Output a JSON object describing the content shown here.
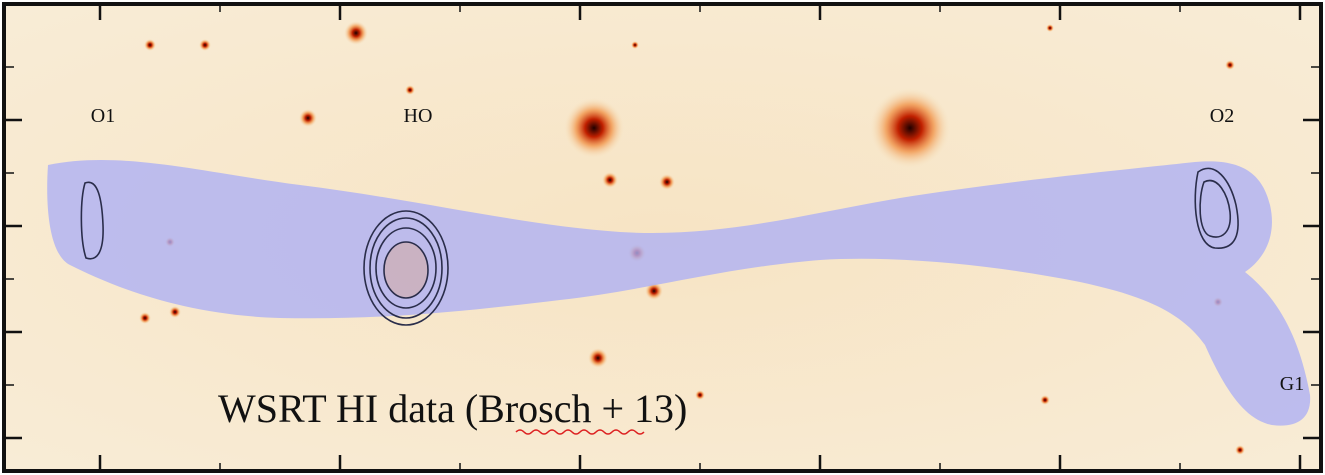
{
  "labels": [
    "O1",
    "HO",
    "O2",
    "G1"
  ],
  "caption": "WSRT HI data (Brosch + 13)"
}
